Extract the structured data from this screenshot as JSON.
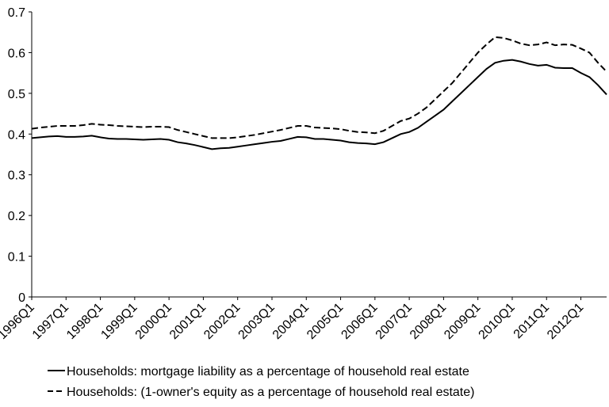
{
  "chart_data": {
    "type": "line",
    "categories": [
      "1996Q1",
      null,
      null,
      null,
      "1997Q1",
      null,
      null,
      null,
      "1998Q1",
      null,
      null,
      null,
      "1999Q1",
      null,
      null,
      null,
      "2000Q1",
      null,
      null,
      null,
      "2001Q1",
      null,
      null,
      null,
      "2002Q1",
      null,
      null,
      null,
      "2003Q1",
      null,
      null,
      null,
      "2004Q1",
      null,
      null,
      null,
      "2005Q1",
      null,
      null,
      null,
      "2006Q1",
      null,
      null,
      null,
      "2007Q1",
      null,
      null,
      null,
      "2008Q1",
      null,
      null,
      null,
      "2009Q1",
      null,
      null,
      null,
      "2010Q1",
      null,
      null,
      null,
      "2011Q1",
      null,
      null,
      null,
      "2012Q1",
      null,
      null,
      null
    ],
    "series": [
      {
        "name": "Households: mortgage liability as a percentage of household real estate",
        "color": "#000000",
        "linestyle": "solid",
        "values": [
          0.39,
          0.392,
          0.394,
          0.395,
          0.393,
          0.393,
          0.394,
          0.396,
          0.392,
          0.389,
          0.388,
          0.388,
          0.387,
          0.386,
          0.387,
          0.388,
          0.386,
          0.38,
          0.377,
          0.373,
          0.368,
          0.363,
          0.365,
          0.366,
          0.369,
          0.372,
          0.375,
          0.378,
          0.381,
          0.383,
          0.388,
          0.393,
          0.392,
          0.388,
          0.388,
          0.386,
          0.384,
          0.38,
          0.378,
          0.377,
          0.375,
          0.38,
          0.39,
          0.4,
          0.405,
          0.415,
          0.43,
          0.445,
          0.46,
          0.48,
          0.5,
          0.52,
          0.54,
          0.56,
          0.575,
          0.58,
          0.582,
          0.578,
          0.572,
          0.568,
          0.57,
          0.563,
          0.562,
          0.562,
          0.55,
          0.54,
          0.52,
          0.497
        ]
      },
      {
        "name": "Households: (1-owner's equity as a percentage of household real estate)",
        "color": "#000000",
        "linestyle": "dashed",
        "values": [
          0.413,
          0.416,
          0.418,
          0.42,
          0.42,
          0.42,
          0.422,
          0.425,
          0.423,
          0.422,
          0.42,
          0.419,
          0.418,
          0.417,
          0.418,
          0.418,
          0.417,
          0.41,
          0.405,
          0.4,
          0.395,
          0.39,
          0.39,
          0.39,
          0.392,
          0.395,
          0.398,
          0.402,
          0.406,
          0.41,
          0.415,
          0.42,
          0.42,
          0.416,
          0.415,
          0.414,
          0.412,
          0.408,
          0.405,
          0.404,
          0.402,
          0.408,
          0.42,
          0.432,
          0.438,
          0.45,
          0.465,
          0.485,
          0.505,
          0.525,
          0.55,
          0.575,
          0.6,
          0.62,
          0.638,
          0.636,
          0.63,
          0.622,
          0.618,
          0.62,
          0.625,
          0.618,
          0.62,
          0.619,
          0.61,
          0.6,
          0.575,
          0.553
        ]
      }
    ],
    "ylim": [
      0,
      0.7
    ],
    "yticks": [
      0,
      0.1,
      0.2,
      0.3,
      0.4,
      0.5,
      0.6,
      0.7
    ]
  }
}
